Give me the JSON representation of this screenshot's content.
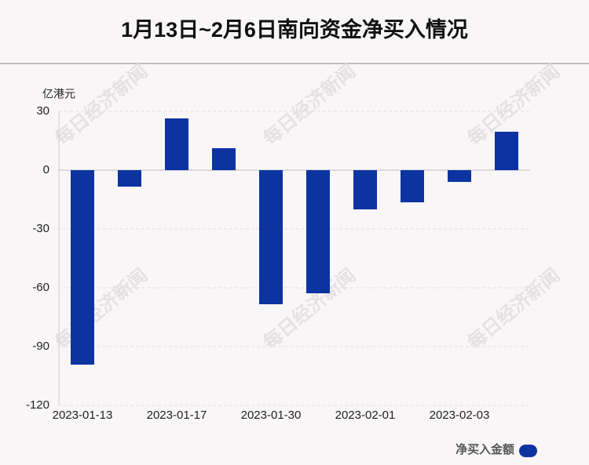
{
  "chart_data": {
    "type": "bar",
    "title": "1月13日~2月6日南向资金净买入情况",
    "y_unit": "亿港元",
    "watermark": "每日经济新闻",
    "categories": [
      "2023-01-13",
      null,
      "2023-01-17",
      null,
      "2023-01-30",
      null,
      "2023-02-01",
      null,
      "2023-02-03",
      null
    ],
    "series": [
      {
        "name": "净买入金额",
        "color": "#0c33a0",
        "values": [
          -99.2,
          -8.4,
          26.4,
          11.2,
          -68.4,
          -62.8,
          -20,
          -16.4,
          -6,
          19.6
        ]
      }
    ],
    "ylim": [
      -120,
      30
    ],
    "yticks": [
      -120,
      -90,
      -60,
      -30,
      0,
      30
    ],
    "grid": true,
    "legend": "bottom-right"
  }
}
